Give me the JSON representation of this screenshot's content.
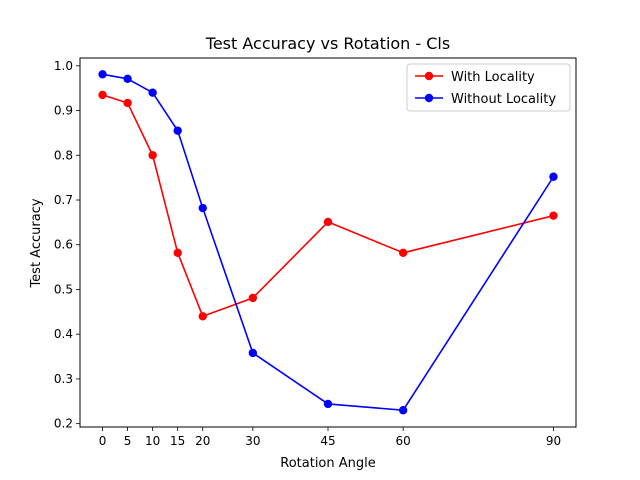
{
  "chart_data": {
    "type": "line",
    "title": "Test Accuracy vs Rotation - Cls",
    "xlabel": "Rotation Angle",
    "ylabel": "Test Accuracy",
    "x": [
      0,
      5,
      10,
      15,
      20,
      30,
      45,
      60,
      90
    ],
    "xticks": [
      0,
      5,
      10,
      15,
      20,
      30,
      45,
      60,
      90
    ],
    "xlim": [
      -4.5,
      94.5
    ],
    "yticks": [
      0.2,
      0.3,
      0.4,
      0.5,
      0.6,
      0.7,
      0.8,
      0.9,
      1.0
    ],
    "ytick_labels": [
      "0.2",
      "0.3",
      "0.4",
      "0.5",
      "0.6",
      "0.7",
      "0.8",
      "0.9",
      "1.0"
    ],
    "ylim": [
      0.1925,
      1.0175
    ],
    "grid": false,
    "legend_position": "top-right",
    "series": [
      {
        "name": "With Locality",
        "color": "#ff0000",
        "marker": "circle",
        "values": [
          0.935,
          0.917,
          0.8,
          0.582,
          0.44,
          0.481,
          0.651,
          0.582,
          0.665
        ]
      },
      {
        "name": "Without Locality",
        "color": "#0000ff",
        "marker": "circle",
        "values": [
          0.981,
          0.971,
          0.94,
          0.855,
          0.682,
          0.358,
          0.244,
          0.23,
          0.752
        ]
      }
    ]
  }
}
